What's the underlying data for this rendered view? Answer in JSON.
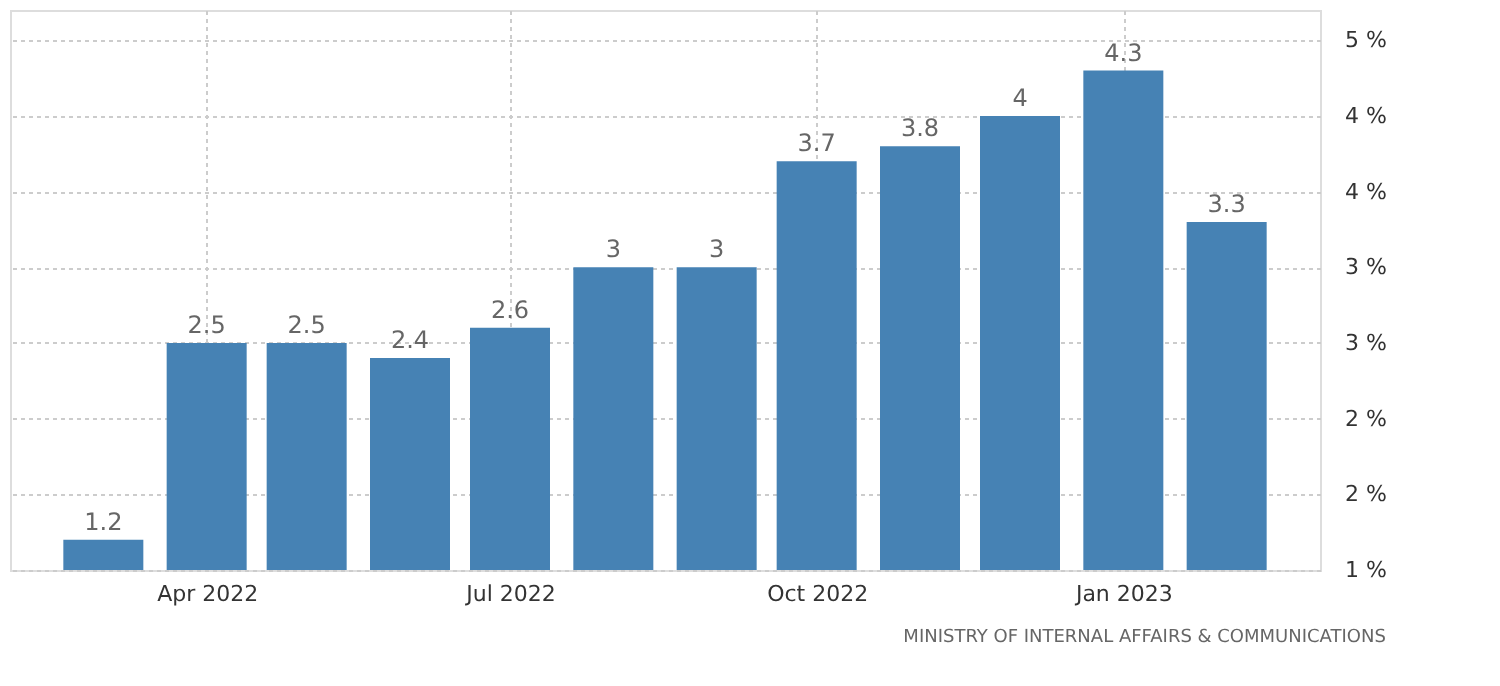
{
  "chart_data": {
    "type": "bar",
    "x": [
      "2022-03",
      "2022-04",
      "2022-05",
      "2022-06",
      "2022-07",
      "2022-08",
      "2022-09",
      "2022-10",
      "2022-11",
      "2022-12",
      "2023-01",
      "2023-02"
    ],
    "values": [
      1.2,
      2.5,
      2.5,
      2.4,
      2.6,
      3,
      3,
      3.7,
      3.8,
      4,
      4.3,
      3.3
    ],
    "color": "#4682b4",
    "data_labels": true,
    "xlim": [
      "2022-02-01",
      "2023-03-01"
    ],
    "xticks": [
      {
        "value": "2022-04",
        "label": "Apr 2022"
      },
      {
        "value": "2022-07",
        "label": "Jul 2022"
      },
      {
        "value": "2022-10",
        "label": "Oct 2022"
      },
      {
        "value": "2023-01",
        "label": "Jan 2023"
      }
    ],
    "ylim": [
      1,
      4.7
    ],
    "yticks": [
      {
        "value": 1,
        "label": "1 %"
      },
      {
        "value": 1.5,
        "label": "2 %"
      },
      {
        "value": 2,
        "label": "2 %"
      },
      {
        "value": 2.5,
        "label": "3 %"
      },
      {
        "value": 3,
        "label": "3 %"
      },
      {
        "value": 3.5,
        "label": "4 %"
      },
      {
        "value": 4,
        "label": "4 %"
      },
      {
        "value": 4.5,
        "label": "5 %"
      }
    ],
    "grid": true,
    "annotations": [
      "MINISTRY OF INTERNAL AFFAIRS & COMMUNICATIONS"
    ]
  }
}
